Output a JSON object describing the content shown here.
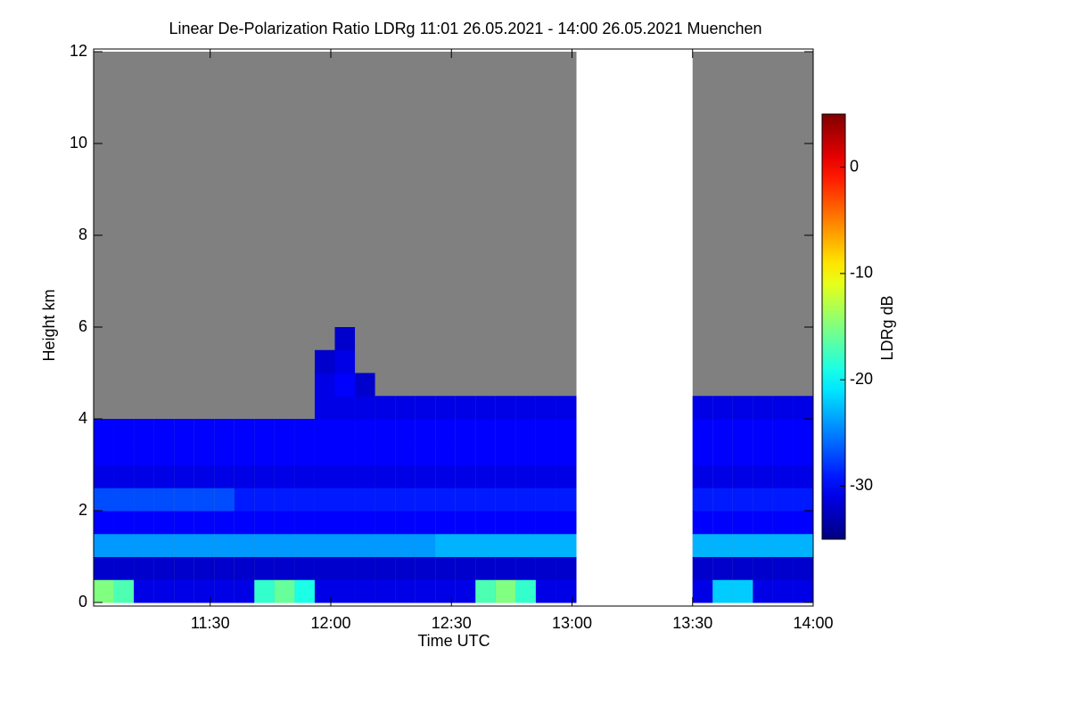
{
  "chart_data": {
    "type": "heatmap",
    "title": "Linear De-Polarization Ratio LDRg   11:01 26.05.2021 - 14:00 26.05.2021 Muenchen",
    "xlabel": "Time UTC",
    "ylabel": "Height km",
    "colorbar_label": "LDRg dB",
    "xlim": [
      661,
      840
    ],
    "xticks": [
      {
        "value": 690,
        "label": "11:30"
      },
      {
        "value": 720,
        "label": "12:00"
      },
      {
        "value": 750,
        "label": "12:30"
      },
      {
        "value": 780,
        "label": "13:00"
      },
      {
        "value": 810,
        "label": "13:30"
      },
      {
        "value": 840,
        "label": "14:00"
      }
    ],
    "ylim": [
      0,
      12
    ],
    "yticks": [
      0,
      2,
      4,
      6,
      8,
      10,
      12
    ],
    "clim": [
      -35,
      5
    ],
    "cticks": [
      0,
      -10,
      -20,
      -30
    ],
    "colormap": "jet",
    "missing_color": "#808080",
    "y_bins": [
      0,
      0.5,
      1,
      1.5,
      2,
      2.5,
      3,
      3.5,
      4,
      4.5,
      5,
      5.5,
      6,
      6.5,
      7,
      7.5,
      8,
      8.5,
      9,
      9.5,
      10,
      10.5,
      11,
      11.5,
      12
    ],
    "columns": [
      {
        "start": 661,
        "end": 666,
        "values": [
          -15,
          -32,
          -24,
          -30,
          -27,
          -31,
          -30,
          -30,
          null,
          null,
          null,
          null,
          null,
          null,
          null,
          null,
          null,
          null,
          null,
          null,
          null,
          null,
          null,
          null
        ]
      },
      {
        "start": 666,
        "end": 671,
        "values": [
          -17,
          -32,
          -24,
          -30,
          -27,
          -31,
          -30,
          -30,
          null,
          null,
          null,
          null,
          null,
          null,
          null,
          null,
          null,
          null,
          null,
          null,
          null,
          null,
          null,
          null
        ]
      },
      {
        "start": 671,
        "end": 676,
        "values": [
          -31,
          -32,
          -24,
          -30,
          -27,
          -31,
          -30,
          -30,
          null,
          null,
          null,
          null,
          null,
          null,
          null,
          null,
          null,
          null,
          null,
          null,
          null,
          null,
          null,
          null
        ]
      },
      {
        "start": 676,
        "end": 681,
        "values": [
          -31,
          -32,
          -24,
          -30,
          -27,
          -31,
          -30,
          -30,
          null,
          null,
          null,
          null,
          null,
          null,
          null,
          null,
          null,
          null,
          null,
          null,
          null,
          null,
          null,
          null
        ]
      },
      {
        "start": 681,
        "end": 686,
        "values": [
          -31,
          -32,
          -24,
          -30,
          -27,
          -31,
          -30,
          -30,
          null,
          null,
          null,
          null,
          null,
          null,
          null,
          null,
          null,
          null,
          null,
          null,
          null,
          null,
          null,
          null
        ]
      },
      {
        "start": 686,
        "end": 691,
        "values": [
          -31,
          -32,
          -24,
          -30,
          -27,
          -31,
          -30,
          -30,
          null,
          null,
          null,
          null,
          null,
          null,
          null,
          null,
          null,
          null,
          null,
          null,
          null,
          null,
          null,
          null
        ]
      },
      {
        "start": 691,
        "end": 696,
        "values": [
          -31,
          -32,
          -24,
          -30,
          -27,
          -31,
          -30,
          -30,
          null,
          null,
          null,
          null,
          null,
          null,
          null,
          null,
          null,
          null,
          null,
          null,
          null,
          null,
          null,
          null
        ]
      },
      {
        "start": 696,
        "end": 701,
        "values": [
          -31,
          -32,
          -24,
          -30,
          -29,
          -31,
          -30,
          -30,
          null,
          null,
          null,
          null,
          null,
          null,
          null,
          null,
          null,
          null,
          null,
          null,
          null,
          null,
          null,
          null
        ]
      },
      {
        "start": 701,
        "end": 706,
        "values": [
          -18,
          -32,
          -24,
          -30,
          -29,
          -31,
          -30,
          -30,
          null,
          null,
          null,
          null,
          null,
          null,
          null,
          null,
          null,
          null,
          null,
          null,
          null,
          null,
          null,
          null
        ]
      },
      {
        "start": 706,
        "end": 711,
        "values": [
          -16,
          -32,
          -24,
          -30,
          -29,
          -31,
          -30,
          -30,
          null,
          null,
          null,
          null,
          null,
          null,
          null,
          null,
          null,
          null,
          null,
          null,
          null,
          null,
          null,
          null
        ]
      },
      {
        "start": 711,
        "end": 716,
        "values": [
          -19,
          -32,
          -24,
          -30,
          -29,
          -31,
          -30,
          -30,
          null,
          null,
          null,
          null,
          null,
          null,
          null,
          null,
          null,
          null,
          null,
          null,
          null,
          null,
          null,
          null
        ]
      },
      {
        "start": 716,
        "end": 721,
        "values": [
          -31,
          -32,
          -24,
          -30,
          -29,
          -31,
          -30,
          -30,
          -31,
          -31,
          -32,
          null,
          null,
          null,
          null,
          null,
          null,
          null,
          null,
          null,
          null,
          null,
          null,
          null
        ]
      },
      {
        "start": 721,
        "end": 726,
        "values": [
          -31,
          -32,
          -24,
          -30,
          -29,
          -31,
          -30,
          -30,
          -31,
          -30,
          -31,
          -32,
          null,
          null,
          null,
          null,
          null,
          null,
          null,
          null,
          null,
          null,
          null,
          null
        ]
      },
      {
        "start": 726,
        "end": 731,
        "values": [
          -31,
          -32,
          -24,
          -30,
          -29,
          -31,
          -30,
          -30,
          -31,
          -32,
          null,
          null,
          null,
          null,
          null,
          null,
          null,
          null,
          null,
          null,
          null,
          null,
          null,
          null
        ]
      },
      {
        "start": 731,
        "end": 736,
        "values": [
          -31,
          -32,
          -24,
          -30,
          -29,
          -31,
          -30,
          -30,
          -31,
          null,
          null,
          null,
          null,
          null,
          null,
          null,
          null,
          null,
          null,
          null,
          null,
          null,
          null,
          null
        ]
      },
      {
        "start": 736,
        "end": 741,
        "values": [
          -31,
          -32,
          -24,
          -30,
          -29,
          -31,
          -30,
          -30,
          -31,
          null,
          null,
          null,
          null,
          null,
          null,
          null,
          null,
          null,
          null,
          null,
          null,
          null,
          null,
          null
        ]
      },
      {
        "start": 741,
        "end": 746,
        "values": [
          -31,
          -32,
          -24,
          -30,
          -29,
          -31,
          -30,
          -30,
          -31,
          null,
          null,
          null,
          null,
          null,
          null,
          null,
          null,
          null,
          null,
          null,
          null,
          null,
          null,
          null
        ]
      },
      {
        "start": 746,
        "end": 751,
        "values": [
          -31,
          -32,
          -23,
          -30,
          -29,
          -31,
          -30,
          -30,
          -31,
          null,
          null,
          null,
          null,
          null,
          null,
          null,
          null,
          null,
          null,
          null,
          null,
          null,
          null,
          null
        ]
      },
      {
        "start": 751,
        "end": 756,
        "values": [
          -31,
          -32,
          -23,
          -30,
          -29,
          -31,
          -30,
          -30,
          -31,
          null,
          null,
          null,
          null,
          null,
          null,
          null,
          null,
          null,
          null,
          null,
          null,
          null,
          null,
          null
        ]
      },
      {
        "start": 756,
        "end": 761,
        "values": [
          -17,
          -32,
          -23,
          -30,
          -29,
          -31,
          -30,
          -30,
          -31,
          null,
          null,
          null,
          null,
          null,
          null,
          null,
          null,
          null,
          null,
          null,
          null,
          null,
          null,
          null
        ]
      },
      {
        "start": 761,
        "end": 766,
        "values": [
          -15,
          -32,
          -23,
          -30,
          -29,
          -31,
          -30,
          -30,
          -31,
          null,
          null,
          null,
          null,
          null,
          null,
          null,
          null,
          null,
          null,
          null,
          null,
          null,
          null,
          null
        ]
      },
      {
        "start": 766,
        "end": 771,
        "values": [
          -18,
          -32,
          -23,
          -30,
          -29,
          -31,
          -30,
          -30,
          -31,
          null,
          null,
          null,
          null,
          null,
          null,
          null,
          null,
          null,
          null,
          null,
          null,
          null,
          null,
          null
        ]
      },
      {
        "start": 771,
        "end": 776,
        "values": [
          -31,
          -32,
          -23,
          -30,
          -29,
          -31,
          -30,
          -30,
          -31,
          null,
          null,
          null,
          null,
          null,
          null,
          null,
          null,
          null,
          null,
          null,
          null,
          null,
          null,
          null
        ]
      },
      {
        "start": 776,
        "end": 781,
        "values": [
          -31,
          -32,
          -23,
          -30,
          -29,
          -31,
          -30,
          -30,
          -31,
          null,
          null,
          null,
          null,
          null,
          null,
          null,
          null,
          null,
          null,
          null,
          null,
          null,
          null,
          null
        ]
      },
      {
        "start": 810,
        "end": 815,
        "values": [
          -31,
          -32,
          -23,
          -30,
          -29,
          -31,
          -30,
          -30,
          -31,
          null,
          null,
          null,
          null,
          null,
          null,
          null,
          null,
          null,
          null,
          null,
          null,
          null,
          null,
          null
        ]
      },
      {
        "start": 815,
        "end": 820,
        "values": [
          -22,
          -32,
          -23,
          -30,
          -29,
          -31,
          -30,
          -30,
          -31,
          null,
          null,
          null,
          null,
          null,
          null,
          null,
          null,
          null,
          null,
          null,
          null,
          null,
          null,
          null
        ]
      },
      {
        "start": 820,
        "end": 825,
        "values": [
          -22,
          -32,
          -23,
          -30,
          -29,
          -31,
          -30,
          -30,
          -31,
          null,
          null,
          null,
          null,
          null,
          null,
          null,
          null,
          null,
          null,
          null,
          null,
          null,
          null,
          null
        ]
      },
      {
        "start": 825,
        "end": 830,
        "values": [
          -31,
          -32,
          -23,
          -30,
          -29,
          -31,
          -30,
          -30,
          -31,
          null,
          null,
          null,
          null,
          null,
          null,
          null,
          null,
          null,
          null,
          null,
          null,
          null,
          null,
          null
        ]
      },
      {
        "start": 830,
        "end": 835,
        "values": [
          -31,
          -32,
          -23,
          -30,
          -29,
          -31,
          -30,
          -30,
          -31,
          null,
          null,
          null,
          null,
          null,
          null,
          null,
          null,
          null,
          null,
          null,
          null,
          null,
          null,
          null
        ]
      },
      {
        "start": 835,
        "end": 840,
        "values": [
          -31,
          -32,
          -23,
          -30,
          -29,
          -31,
          -30,
          -30,
          -31,
          null,
          null,
          null,
          null,
          null,
          null,
          null,
          null,
          null,
          null,
          null,
          null,
          null,
          null,
          null
        ]
      }
    ]
  }
}
